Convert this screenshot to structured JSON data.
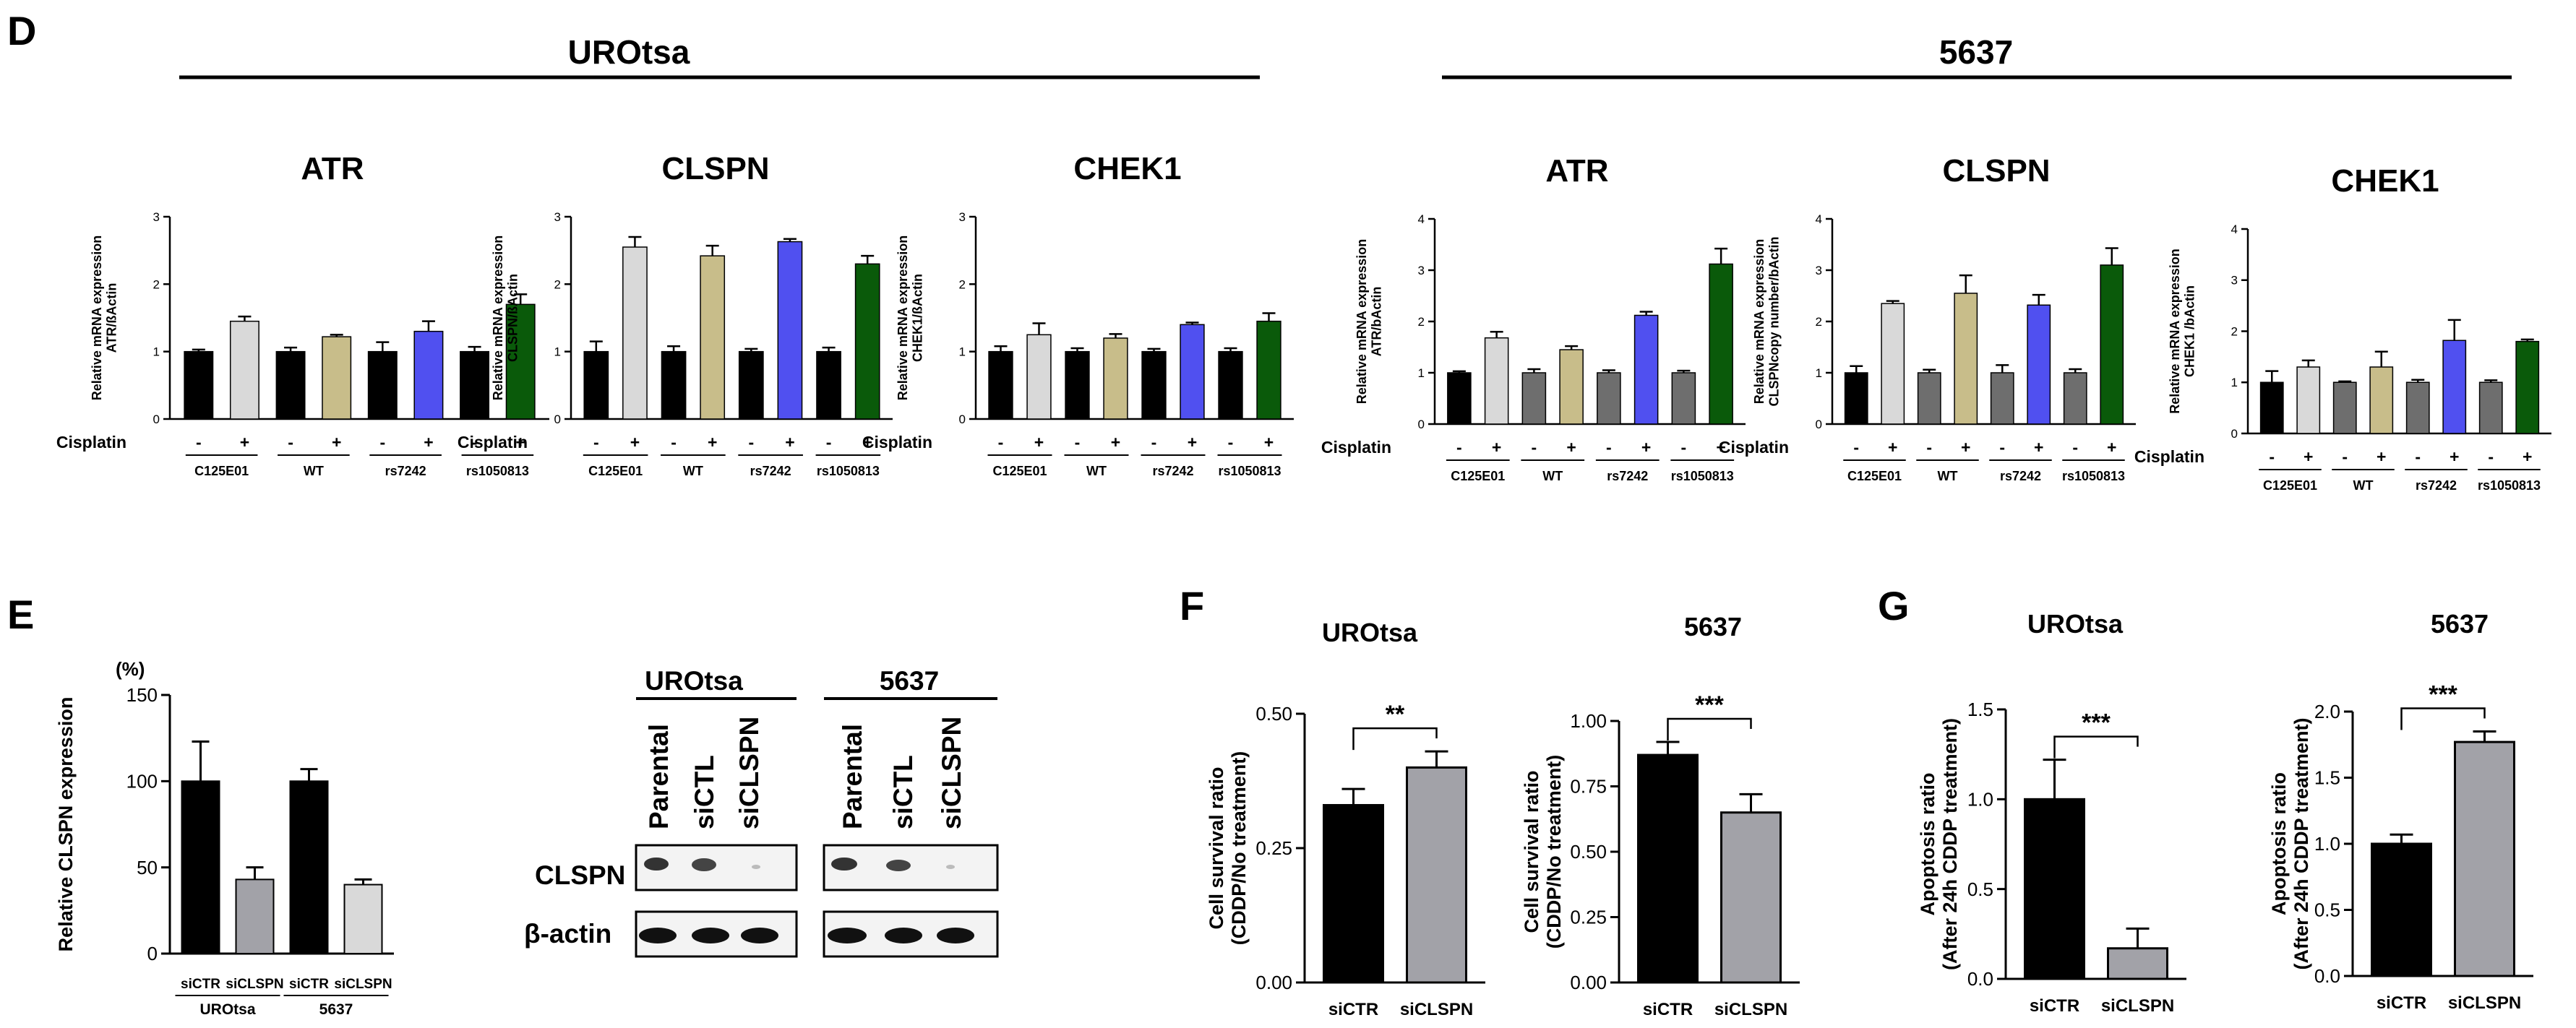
{
  "panels": {
    "D": {
      "letter": "D",
      "groups": [
        "UROtsa",
        "5637"
      ]
    },
    "E": {
      "letter": "E"
    },
    "F": {
      "letter": "F"
    },
    "G": {
      "letter": "G"
    }
  },
  "western_blot": {
    "cell_lines": [
      "UROtsa",
      "5637"
    ],
    "lanes": [
      "Parental",
      "siCTL",
      "siCLSPN"
    ],
    "rows": [
      "CLSPN",
      "β-actin"
    ]
  },
  "colors": {
    "black": "#000000",
    "light_gray": "#d9d9d9",
    "dark_gray": "#6e6e6e",
    "tan": "#c8bd8a",
    "blue": "#5050f0",
    "green": "#0a5a0a",
    "gray_bar": "#a2a2a8"
  },
  "chart_data": [
    {
      "id": "D-UROtsa-ATR",
      "type": "bar",
      "title": "ATR",
      "ylabel": [
        "Relative mRNA expression",
        "ATR/ßActin"
      ],
      "ylim": [
        0,
        3
      ],
      "yticks": [
        "0",
        "1",
        "2",
        "3"
      ],
      "row_label": "Cisplatin",
      "treatments": [
        "-",
        "+",
        "-",
        "+",
        "-",
        "+",
        "-",
        "+"
      ],
      "groups": [
        "C125E01",
        "WT",
        "rs7242",
        "rs1050813"
      ],
      "values": [
        1.0,
        1.45,
        1.0,
        1.22,
        1.0,
        1.3,
        1.0,
        1.7
      ],
      "errors": [
        0.03,
        0.07,
        0.06,
        0.03,
        0.14,
        0.15,
        0.07,
        0.15
      ],
      "colors": [
        "#000000",
        "#d9d9d9",
        "#000000",
        "#c8bd8a",
        "#000000",
        "#5050f0",
        "#000000",
        "#0a5a0a"
      ]
    },
    {
      "id": "D-UROtsa-CLSPN",
      "type": "bar",
      "title": "CLSPN",
      "ylabel": [
        "Relative mRNA expression",
        "CLSPN/ßActin"
      ],
      "ylim": [
        0,
        3
      ],
      "yticks": [
        "0",
        "1",
        "2",
        "3"
      ],
      "row_label": "Cisplatin",
      "treatments": [
        "-",
        "+",
        "-",
        "+",
        "-",
        "+",
        "-",
        "+"
      ],
      "groups": [
        "C125E01",
        "WT",
        "rs7242",
        "rs1050813"
      ],
      "values": [
        1.0,
        2.55,
        1.0,
        2.42,
        1.0,
        2.63,
        1.0,
        2.3
      ],
      "errors": [
        0.15,
        0.15,
        0.08,
        0.15,
        0.04,
        0.04,
        0.06,
        0.12
      ],
      "colors": [
        "#000000",
        "#d9d9d9",
        "#000000",
        "#c8bd8a",
        "#000000",
        "#5050f0",
        "#000000",
        "#0a5a0a"
      ]
    },
    {
      "id": "D-UROtsa-CHEK1",
      "type": "bar",
      "title": "CHEK1",
      "ylabel": [
        "Relative mRNA expression",
        "CHEK1/ßActin"
      ],
      "ylim": [
        0,
        3
      ],
      "yticks": [
        "0",
        "1",
        "2",
        "3"
      ],
      "row_label": "Cisplatin",
      "treatments": [
        "-",
        "+",
        "-",
        "+",
        "-",
        "+",
        "-",
        "+"
      ],
      "groups": [
        "C125E01",
        "WT",
        "rs7242",
        "rs1050813"
      ],
      "values": [
        1.0,
        1.25,
        1.0,
        1.2,
        1.0,
        1.4,
        1.0,
        1.45
      ],
      "errors": [
        0.08,
        0.17,
        0.05,
        0.06,
        0.04,
        0.03,
        0.05,
        0.12
      ],
      "colors": [
        "#000000",
        "#d9d9d9",
        "#000000",
        "#c8bd8a",
        "#000000",
        "#5050f0",
        "#000000",
        "#0a5a0a"
      ]
    },
    {
      "id": "D-5637-ATR",
      "type": "bar",
      "title": "ATR",
      "ylabel": [
        "Relative mRNA expression",
        "ATR/bActin"
      ],
      "ylim": [
        0,
        4
      ],
      "yticks": [
        "0",
        "1",
        "2",
        "3",
        "4"
      ],
      "row_label": "Cisplatin",
      "treatments": [
        "-",
        "+",
        "-",
        "+",
        "-",
        "+",
        "-",
        "+"
      ],
      "groups": [
        "C125E01",
        "WT",
        "rs7242",
        "rs1050813"
      ],
      "values": [
        1.0,
        1.68,
        1.0,
        1.45,
        1.0,
        2.12,
        1.0,
        3.12
      ],
      "errors": [
        0.03,
        0.12,
        0.07,
        0.07,
        0.05,
        0.07,
        0.04,
        0.3
      ],
      "colors": [
        "#000000",
        "#d9d9d9",
        "#6e6e6e",
        "#c8bd8a",
        "#6e6e6e",
        "#5050f0",
        "#6e6e6e",
        "#0a5a0a"
      ]
    },
    {
      "id": "D-5637-CLSPN",
      "type": "bar",
      "title": "CLSPN",
      "ylabel": [
        "Relative mRNA expression",
        "CLSPNcopy number/bActin"
      ],
      "ylim": [
        0,
        4
      ],
      "yticks": [
        "0",
        "1",
        "2",
        "3",
        "4"
      ],
      "row_label": "Cisplatin",
      "treatments": [
        "-",
        "+",
        "-",
        "+",
        "-",
        "+",
        "-",
        "+"
      ],
      "groups": [
        "C125E01",
        "WT",
        "rs7242",
        "rs1050813"
      ],
      "values": [
        1.0,
        2.35,
        1.0,
        2.55,
        1.0,
        2.32,
        1.0,
        3.1
      ],
      "errors": [
        0.13,
        0.05,
        0.06,
        0.35,
        0.15,
        0.2,
        0.07,
        0.33
      ],
      "colors": [
        "#000000",
        "#d9d9d9",
        "#6e6e6e",
        "#c8bd8a",
        "#6e6e6e",
        "#5050f0",
        "#6e6e6e",
        "#0a5a0a"
      ]
    },
    {
      "id": "D-5637-CHEK1",
      "type": "bar",
      "title": "CHEK1",
      "ylabel": [
        "Relative mRNA expression",
        "CHEK1 /bActin"
      ],
      "ylim": [
        0,
        4
      ],
      "yticks": [
        "0",
        "1",
        "2",
        "3",
        "4"
      ],
      "row_label": "Cisplatin",
      "treatments": [
        "-",
        "+",
        "-",
        "+",
        "-",
        "+",
        "-",
        "+"
      ],
      "groups": [
        "C125E01",
        "WT",
        "rs7242",
        "rs1050813"
      ],
      "values": [
        1.0,
        1.3,
        1.0,
        1.3,
        1.0,
        1.82,
        1.0,
        1.8
      ],
      "errors": [
        0.22,
        0.13,
        0.02,
        0.3,
        0.05,
        0.4,
        0.04,
        0.04
      ],
      "colors": [
        "#000000",
        "#d9d9d9",
        "#6e6e6e",
        "#c8bd8a",
        "#6e6e6e",
        "#5050f0",
        "#6e6e6e",
        "#0a5a0a"
      ]
    },
    {
      "id": "E-bar",
      "type": "bar",
      "title": "",
      "ylabel": [
        "Relative CLSPN expression"
      ],
      "unit": "(%)",
      "ylim": [
        0,
        150
      ],
      "yticks": [
        "0",
        "50",
        "100",
        "150"
      ],
      "categories": [
        "siCTR",
        "siCLSPN",
        "siCTR",
        "siCLSPN"
      ],
      "groups": [
        "UROtsa",
        "5637"
      ],
      "values": [
        100,
        43,
        100,
        40
      ],
      "errors": [
        23,
        7,
        7,
        3
      ],
      "colors": [
        "#000000",
        "#a2a2a8",
        "#000000",
        "#d9d9d9"
      ]
    },
    {
      "id": "F-UROtsa",
      "type": "bar",
      "title": "UROtsa",
      "ylabel": [
        "Cell survival ratio",
        "(CDDP/No treatment)"
      ],
      "ylim": [
        0,
        0.5
      ],
      "yticks": [
        "0.00",
        "0.25",
        "0.50"
      ],
      "categories": [
        "siCTR",
        "siCLSPN"
      ],
      "values": [
        0.33,
        0.4
      ],
      "errors": [
        0.03,
        0.03
      ],
      "colors": [
        "#000000",
        "#a2a2a8"
      ],
      "significance": "**"
    },
    {
      "id": "F-5637",
      "type": "bar",
      "title": "5637",
      "ylabel": [
        "Cell survival ratio",
        "(CDDP/No treatment)"
      ],
      "ylim": [
        0,
        1.0
      ],
      "yticks": [
        "0.00",
        "0.25",
        "0.50",
        "0.75",
        "1.00"
      ],
      "categories": [
        "siCTR",
        "siCLSPN"
      ],
      "values": [
        0.87,
        0.65
      ],
      "errors": [
        0.05,
        0.07
      ],
      "colors": [
        "#000000",
        "#a2a2a8"
      ],
      "significance": "***"
    },
    {
      "id": "G-UROtsa",
      "type": "bar",
      "title": "UROtsa",
      "ylabel": [
        "Apoptosis ratio",
        "(After 24h CDDP treatment)"
      ],
      "ylim": [
        0,
        1.5
      ],
      "yticks": [
        "0.0",
        "0.5",
        "1.0",
        "1.5"
      ],
      "categories": [
        "siCTR",
        "siCLSPN"
      ],
      "values": [
        1.0,
        0.17
      ],
      "errors": [
        0.22,
        0.11
      ],
      "colors": [
        "#000000",
        "#a2a2a8"
      ],
      "significance": "***"
    },
    {
      "id": "G-5637",
      "type": "bar",
      "title": "5637",
      "ylabel": [
        "Apoptosis ratio",
        "(After 24h CDDP treatment)"
      ],
      "ylim": [
        0,
        2.0
      ],
      "yticks": [
        "0.0",
        "0.5",
        "1.0",
        "1.5",
        "2.0"
      ],
      "categories": [
        "siCTR",
        "siCLSPN"
      ],
      "values": [
        1.0,
        1.77
      ],
      "errors": [
        0.07,
        0.08
      ],
      "colors": [
        "#000000",
        "#a2a2a8"
      ],
      "significance": "***"
    }
  ]
}
